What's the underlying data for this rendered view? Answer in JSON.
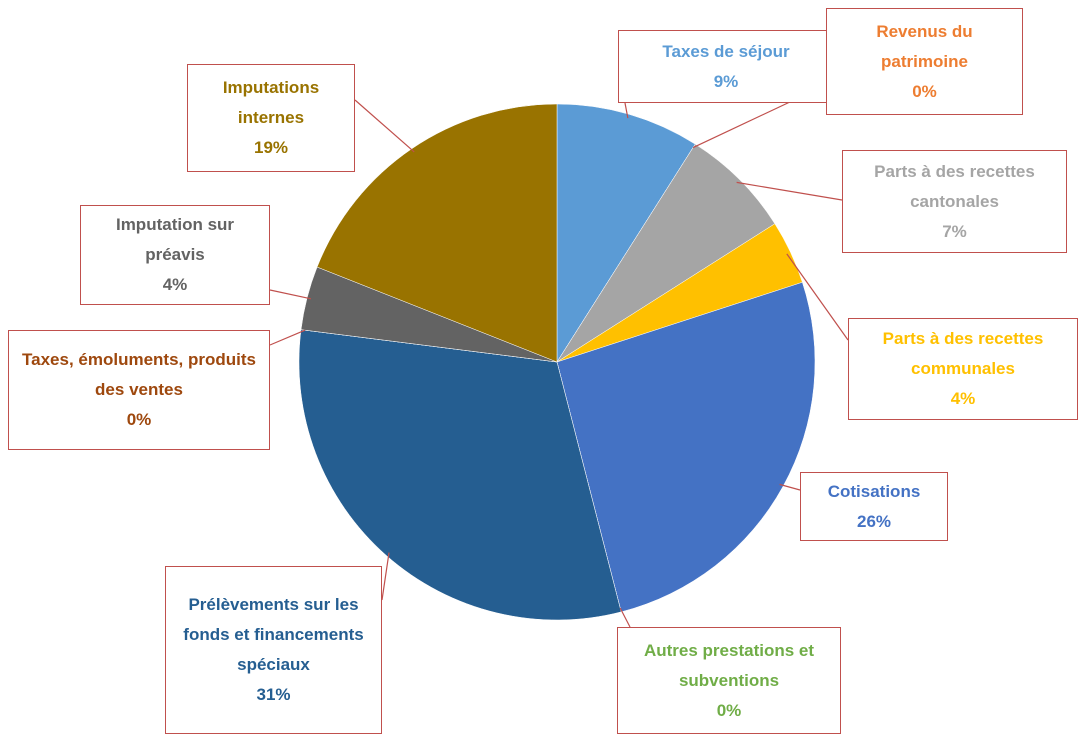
{
  "chart_data": {
    "type": "pie",
    "categories": [
      "Taxes de séjour",
      "Revenus du patrimoine",
      "Parts à des recettes cantonales",
      "Parts à des recettes communales",
      "Cotisations",
      "Autres prestations et subventions",
      "Prélèvements sur les fonds et financements spéciaux",
      "Taxes, émoluments, produits des ventes",
      "Imputation sur préavis",
      "Imputations internes"
    ],
    "values": [
      9,
      0,
      7,
      4,
      26,
      0,
      31,
      0,
      4,
      19
    ],
    "value_labels": [
      "9%",
      "0%",
      "7%",
      "4%",
      "26%",
      "0%",
      "31%",
      "0%",
      "4%",
      "19%"
    ],
    "colors": [
      "#5b9bd5",
      "#ed7d31",
      "#a5a5a5",
      "#ffc000",
      "#4472c4",
      "#70ad47",
      "#255e91",
      "#9e480e",
      "#636363",
      "#997300"
    ]
  }
}
